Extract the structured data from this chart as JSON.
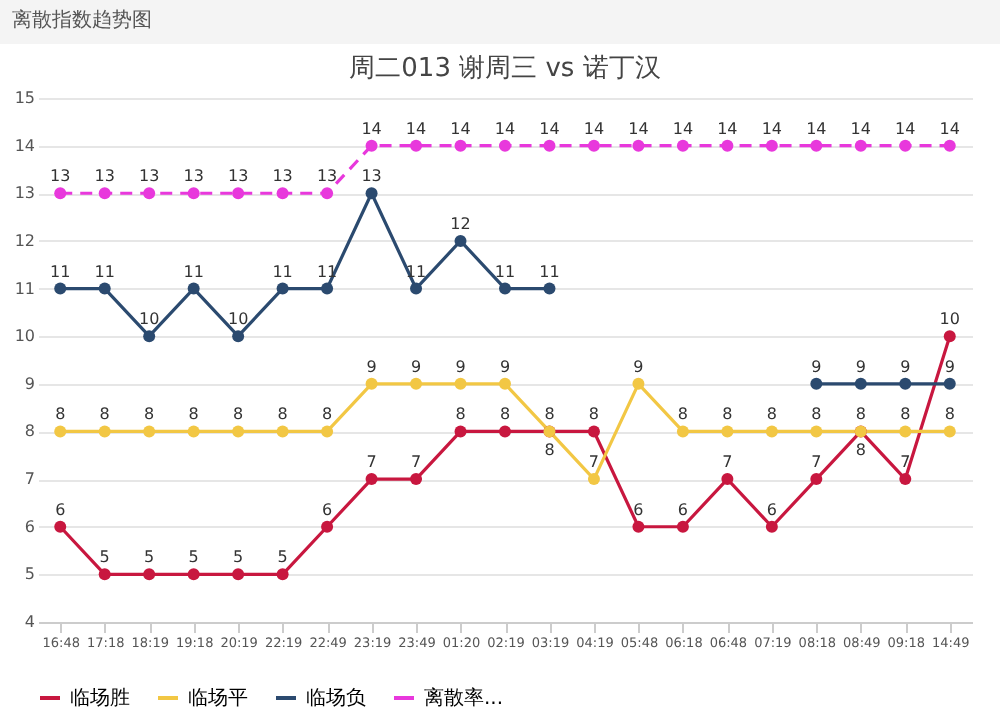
{
  "chart_data": {
    "type": "line",
    "title": "周二013 谢周三 vs 诺丁汉",
    "annotations": [
      "离散指数趋势图"
    ],
    "categories": [
      "16:48",
      "17:18",
      "18:19",
      "19:18",
      "20:19",
      "22:19",
      "22:49",
      "23:19",
      "23:49",
      "01:20",
      "02:19",
      "03:19",
      "04:19",
      "05:48",
      "06:18",
      "06:48",
      "07:19",
      "08:18",
      "08:49",
      "09:18",
      "14:49"
    ],
    "series": [
      {
        "name": "临场胜",
        "color": "#c8173f",
        "values": [
          6,
          5,
          5,
          5,
          5,
          5,
          6,
          7,
          7,
          8,
          8,
          8,
          8,
          6,
          6,
          7,
          6,
          7,
          8,
          7,
          10
        ]
      },
      {
        "name": "临场平",
        "color": "#f2c744",
        "values": [
          8,
          8,
          8,
          8,
          8,
          8,
          8,
          9,
          9,
          9,
          9,
          8,
          7,
          9,
          8,
          8,
          8,
          8,
          8,
          8,
          8
        ]
      },
      {
        "name": "临场负",
        "color": "#2b4a6f",
        "values": [
          11,
          11,
          10,
          11,
          10,
          11,
          11,
          13,
          11,
          12,
          11,
          11,
          null,
          null,
          null,
          null,
          null,
          9,
          9,
          9,
          9
        ]
      },
      {
        "name": "离散率...",
        "color": "#e838dc",
        "line_style": "dashed",
        "values": [
          13,
          13,
          13,
          13,
          13,
          13,
          13,
          14,
          14,
          14,
          14,
          14,
          14,
          14,
          14,
          14,
          14,
          14,
          14,
          14,
          14
        ]
      }
    ],
    "ylim": [
      4,
      15
    ],
    "yticks": [
      4,
      5,
      6,
      7,
      8,
      9,
      10,
      11,
      12,
      13,
      14,
      15
    ],
    "grid": "y",
    "marker": "circle",
    "data_labels": true,
    "legend": "bottom"
  }
}
